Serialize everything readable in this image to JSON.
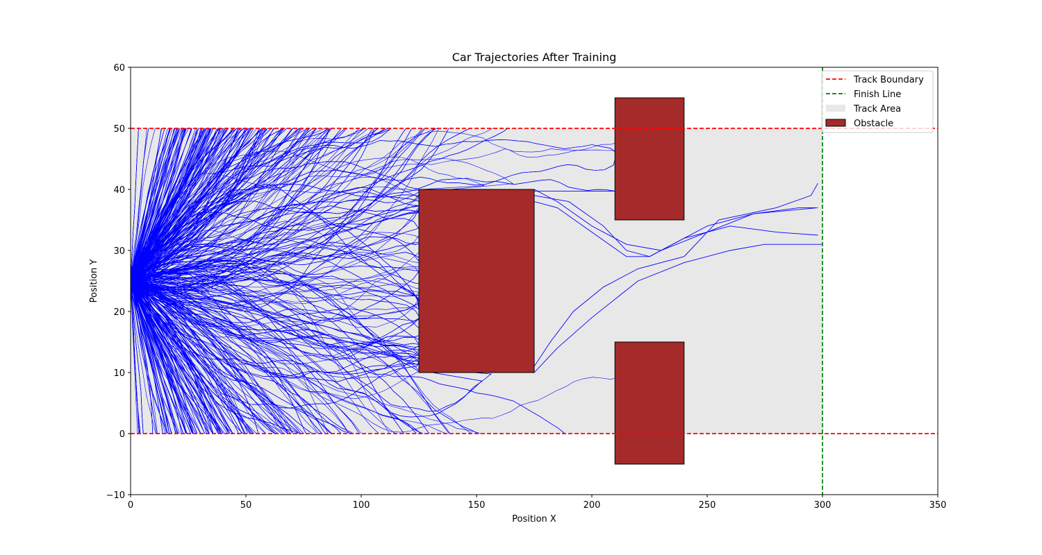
{
  "chart_data": {
    "type": "line",
    "title": "Car Trajectories After Training",
    "xlabel": "Position X",
    "ylabel": "Position Y",
    "xlim": [
      0,
      350
    ],
    "ylim": [
      -10,
      60
    ],
    "x_ticks": [
      0,
      50,
      100,
      150,
      200,
      250,
      300,
      350
    ],
    "y_ticks": [
      -10,
      0,
      10,
      20,
      30,
      40,
      50,
      60
    ],
    "grid": false,
    "legend_position": "top-right",
    "colors": {
      "trajectory": "#0000ff",
      "boundary": "#ff0000",
      "finish": "#008000",
      "track_area": "#e8e8e8",
      "obstacle": "#a52a2a",
      "obstacle_edge": "#000000"
    },
    "track_area": {
      "x": [
        0,
        300
      ],
      "y": [
        0,
        50
      ]
    },
    "boundaries": [
      {
        "name": "Track Boundary",
        "y": 0
      },
      {
        "name": "Track Boundary",
        "y": 50
      }
    ],
    "finish_line": {
      "name": "Finish Line",
      "x": 300
    },
    "obstacles": [
      {
        "name": "Obstacle",
        "x": [
          125,
          175
        ],
        "y": [
          10,
          40
        ]
      },
      {
        "name": "Obstacle",
        "x": [
          210,
          240
        ],
        "y": [
          35,
          55
        ]
      },
      {
        "name": "Obstacle",
        "x": [
          210,
          240
        ],
        "y": [
          -5,
          15
        ]
      }
    ],
    "legend": [
      {
        "label": "Track Boundary",
        "kind": "dashed-line",
        "color": "#ff0000"
      },
      {
        "label": "Finish Line",
        "kind": "dashed-line",
        "color": "#008000"
      },
      {
        "label": "Track Area",
        "kind": "patch",
        "color": "#e8e8e8"
      },
      {
        "label": "Obstacle",
        "kind": "patch",
        "color": "#a52a2a"
      }
    ],
    "trajectories_summary": {
      "start": [
        0,
        25
      ],
      "approximate_count": 900,
      "notes": "Dense fan of trajectories from x=0 spreading toward x≈125; most end at the obstacles or track boundaries"
    },
    "notable_trajectories": [
      {
        "x": [
          0,
          60,
          120,
          175,
          190,
          205,
          215,
          225,
          235,
          250,
          270,
          290,
          297
        ],
        "y": [
          25,
          30,
          36,
          39,
          38,
          34,
          30,
          29,
          31,
          34,
          36,
          37,
          37
        ]
      },
      {
        "x": [
          0,
          60,
          120,
          175,
          185,
          200,
          215,
          225,
          240,
          260,
          280,
          298
        ],
        "y": [
          25,
          30,
          36,
          38,
          37,
          33,
          29,
          29,
          32,
          34,
          33,
          32.5
        ]
      },
      {
        "x": [
          0,
          60,
          120,
          175,
          185,
          200,
          215,
          230,
          250,
          270,
          298
        ],
        "y": [
          25,
          31,
          37,
          40,
          38,
          34,
          31,
          30,
          33,
          36,
          37
        ]
      },
      {
        "x": [
          0,
          60,
          120,
          175,
          182,
          192,
          205,
          220,
          240,
          255,
          280,
          295,
          298
        ],
        "y": [
          25,
          20,
          14,
          11,
          15,
          20,
          24,
          27,
          29,
          35,
          37,
          39,
          41
        ]
      },
      {
        "x": [
          0,
          60,
          120,
          175,
          185,
          200,
          220,
          240,
          260,
          275,
          300
        ],
        "y": [
          25,
          19,
          12,
          10,
          14,
          19,
          25,
          28,
          30,
          31,
          31
        ]
      }
    ]
  }
}
